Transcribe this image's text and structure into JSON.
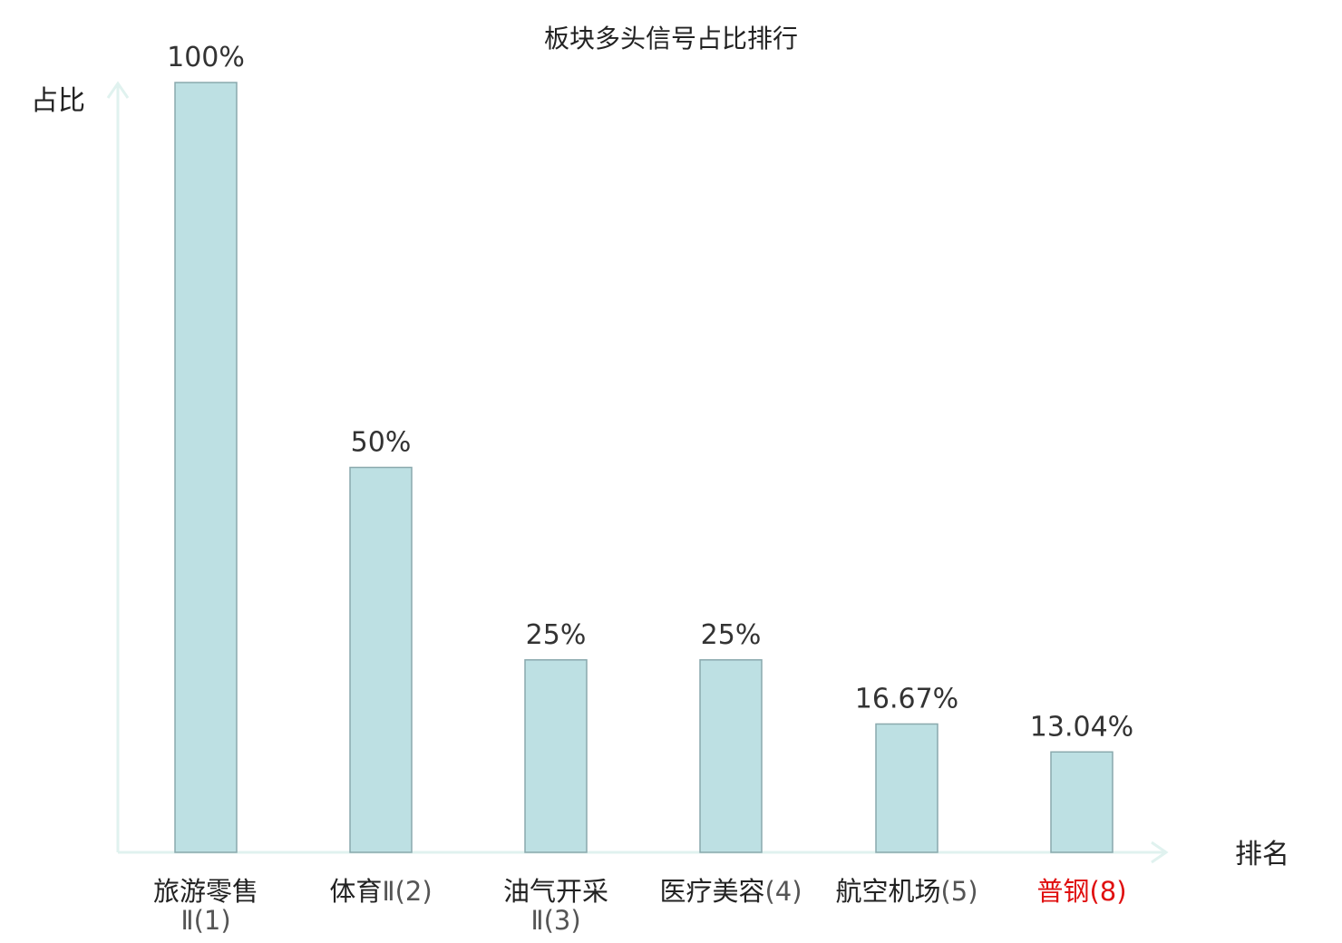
{
  "chart_data": {
    "type": "bar",
    "title": "板块多头信号占比排行",
    "xlabel": "排名",
    "ylabel": "占比",
    "ylim": [
      0,
      100
    ],
    "grid": false,
    "categories": [
      {
        "name": "旅游零售",
        "suffix": "Ⅱ",
        "rank": "(1)",
        "highlight": false
      },
      {
        "name": "体育",
        "suffix": "Ⅱ",
        "rank": "(2)",
        "highlight": false
      },
      {
        "name": "油气开采",
        "suffix": "Ⅱ",
        "rank": "(3)",
        "highlight": false
      },
      {
        "name": "医疗美容",
        "suffix": "",
        "rank": "(4)",
        "highlight": false
      },
      {
        "name": "航空机场",
        "suffix": "",
        "rank": "(5)",
        "highlight": false
      },
      {
        "name": "普钢",
        "suffix": "",
        "rank": "(8)",
        "highlight": true
      }
    ],
    "values": [
      100,
      50,
      25,
      25,
      16.67,
      13.04
    ],
    "value_labels": [
      "100%",
      "50%",
      "25%",
      "25%",
      "16.67%",
      "13.04%"
    ],
    "colors": {
      "bar_fill": "#bde0e3",
      "bar_stroke": "#8aa9ad",
      "axis": "#e0f2ef",
      "highlight_text": "#e01010",
      "normal_text": "#222222"
    }
  }
}
